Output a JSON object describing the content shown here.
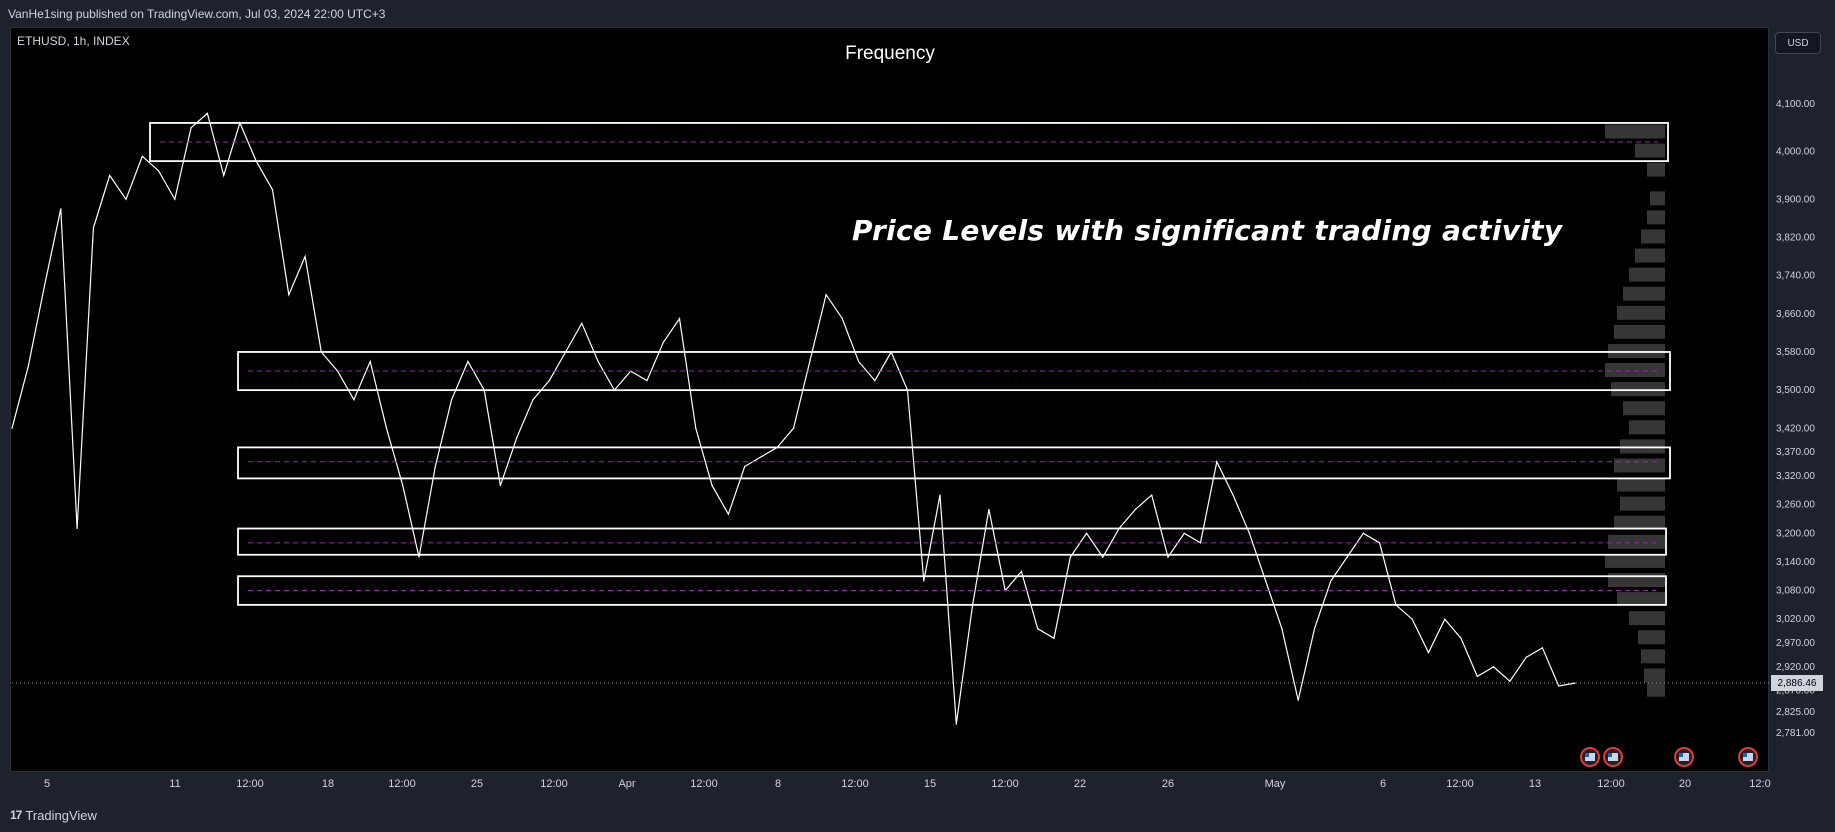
{
  "header": {
    "publish_info": "VanHe1sing published on TradingView.com, Jul 03, 2024 22:00 UTC+3"
  },
  "symbol": {
    "info": "ETHUSD, 1h, INDEX"
  },
  "title": "Frequency",
  "annotation": "Price Levels with significant trading activity",
  "currency_button": "USD",
  "current_price_label": "2,886.46",
  "footer": {
    "brand": "TradingView",
    "logo_mark": "17"
  },
  "colors": {
    "background": "#000000",
    "panel": "#1e222d",
    "price_line": "#ffffff",
    "level_line": "#9c27b0",
    "box": "#ffffff"
  },
  "icons": [
    "us-flag-event-icon",
    "us-flag-event-icon",
    "us-flag-event-icon",
    "us-flag-event-icon"
  ],
  "chart_data": {
    "type": "line",
    "title": "Frequency",
    "symbol": "ETHUSD",
    "interval": "1h",
    "ylim": [
      2750,
      4150
    ],
    "y_ticks": [
      "4,100.00",
      "4,000.00",
      "3,900.00",
      "3,820.00",
      "3,740.00",
      "3,660.00",
      "3,580.00",
      "3,500.00",
      "3,420.00",
      "3,370.00",
      "3,320.00",
      "3,260.00",
      "3,200.00",
      "3,140.00",
      "3,080.00",
      "3,020.00",
      "2,970.00",
      "2,920.00",
      "2,870.00",
      "2,825.00",
      "2,781.00"
    ],
    "x_ticks": [
      "5",
      "11",
      "12:00",
      "18",
      "12:00",
      "25",
      "12:00",
      "Apr",
      "12:00",
      "8",
      "12:00",
      "15",
      "12:00",
      "22",
      "26",
      "May",
      "6",
      "12:00",
      "13",
      "12:00",
      "20",
      "12:0"
    ],
    "current_price": 2886.46,
    "series": [
      {
        "values": [
          3420,
          3550,
          3720,
          3880,
          3210,
          3840,
          3950,
          3900,
          3990,
          3960,
          3900,
          4050,
          4080,
          3950,
          4060,
          3980,
          3920,
          3700,
          3780,
          3580,
          3540,
          3480,
          3560,
          3420,
          3300,
          3150,
          3340,
          3480,
          3560,
          3500,
          3300,
          3400,
          3480,
          3520,
          3580,
          3640,
          3560,
          3500,
          3540,
          3520,
          3600,
          3650,
          3420,
          3300,
          3240,
          3340,
          3360,
          3380,
          3420,
          3560,
          3700,
          3650,
          3560,
          3520,
          3580,
          3500,
          3100,
          3280,
          2800,
          3050,
          3250,
          3080,
          3120,
          3000,
          2980,
          3150,
          3200,
          3150,
          3210,
          3250,
          3280,
          3150,
          3200,
          3180,
          3350,
          3280,
          3200,
          3100,
          3000,
          2850,
          3000,
          3100,
          3150,
          3200,
          3180,
          3050,
          3020,
          2950,
          3020,
          2980,
          2900,
          2920,
          2890,
          2940,
          2960,
          2880,
          2886
        ]
      }
    ],
    "levels": [
      {
        "top": 4060,
        "bottom": 3980,
        "mid": 4020
      },
      {
        "top": 3580,
        "bottom": 3500,
        "mid": 3540
      },
      {
        "top": 3380,
        "bottom": 3315,
        "mid": 3350
      },
      {
        "top": 3210,
        "bottom": 3155,
        "mid": 3180
      },
      {
        "top": 3110,
        "bottom": 3050,
        "mid": 3080
      }
    ],
    "volume_profile": [
      [
        4040,
        1
      ],
      [
        4000,
        0.5
      ],
      [
        3960,
        0.3
      ],
      [
        3900,
        0.25
      ],
      [
        3860,
        0.3
      ],
      [
        3820,
        0.4
      ],
      [
        3780,
        0.5
      ],
      [
        3740,
        0.6
      ],
      [
        3700,
        0.7
      ],
      [
        3660,
        0.8
      ],
      [
        3620,
        0.85
      ],
      [
        3580,
        0.95
      ],
      [
        3540,
        1
      ],
      [
        3500,
        0.9
      ],
      [
        3460,
        0.7
      ],
      [
        3420,
        0.6
      ],
      [
        3380,
        0.75
      ],
      [
        3340,
        0.85
      ],
      [
        3300,
        0.8
      ],
      [
        3260,
        0.75
      ],
      [
        3220,
        0.85
      ],
      [
        3180,
        0.95
      ],
      [
        3140,
        1
      ],
      [
        3100,
        0.95
      ],
      [
        3060,
        0.8
      ],
      [
        3020,
        0.6
      ],
      [
        2980,
        0.45
      ],
      [
        2940,
        0.4
      ],
      [
        2900,
        0.35
      ],
      [
        2870,
        0.3
      ]
    ]
  }
}
